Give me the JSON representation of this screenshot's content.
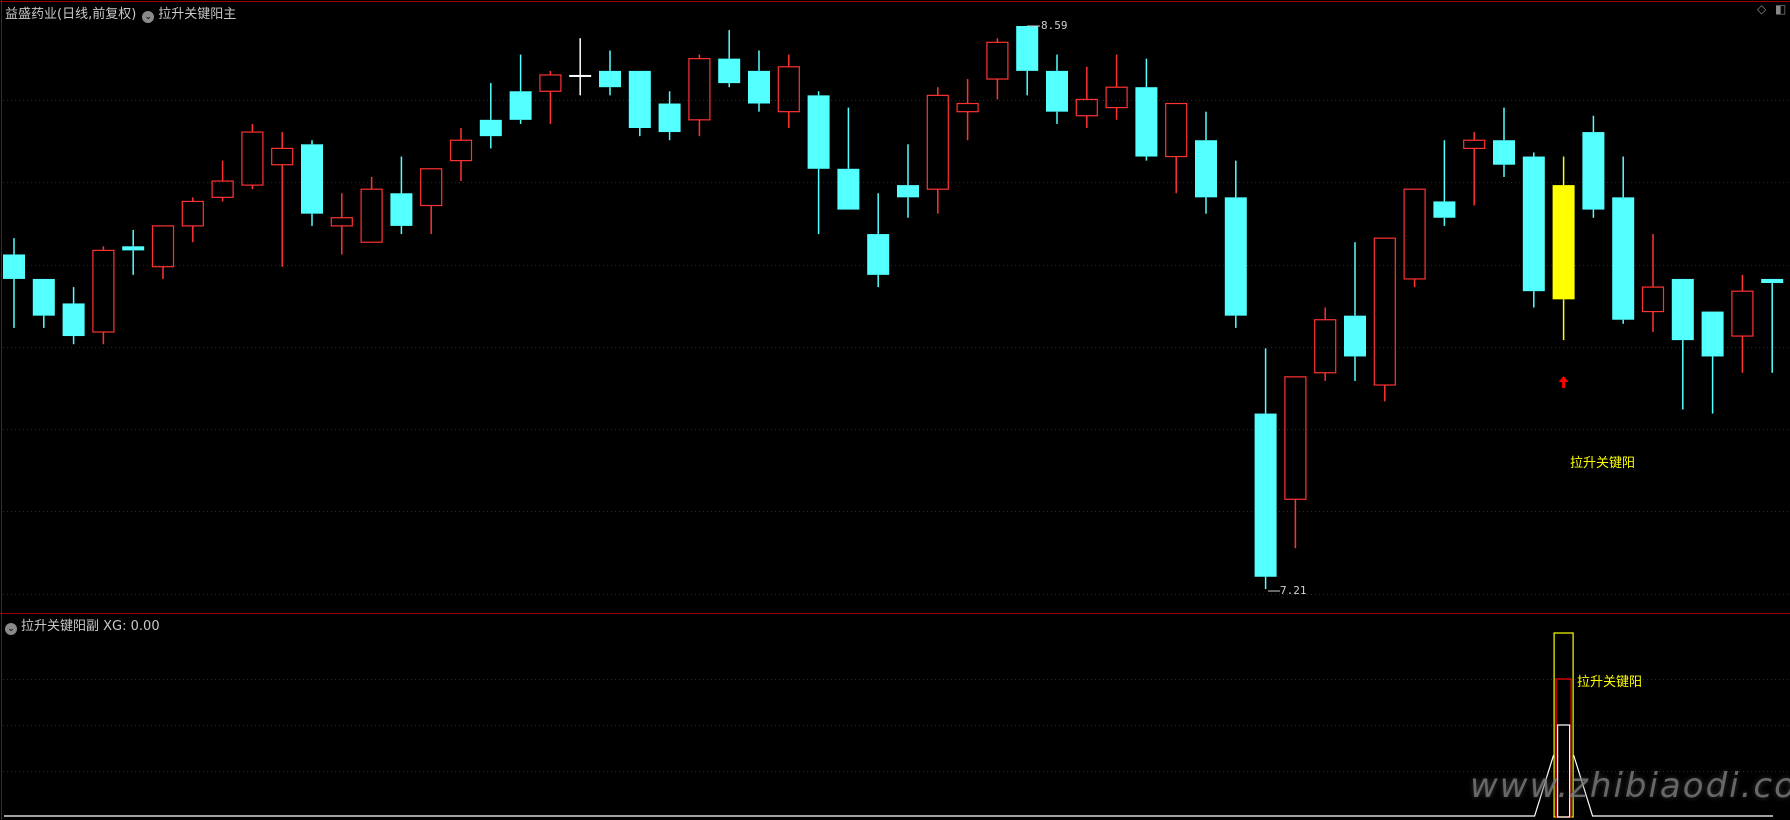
{
  "header": {
    "stock_title": "益盛药业(日线,前复权)",
    "main_indicator": "拉升关键阳主",
    "dropdown_icon": "chevron-down-circle-icon"
  },
  "sub_panel": {
    "indicator_name": "拉升关键阳副",
    "xg_label": "XG: 0.00",
    "signal_text": "拉升关键阳"
  },
  "main_signal_text": "拉升关键阳",
  "watermark": "www.zhibiaodi.com",
  "colors": {
    "up": "#ff3232",
    "down": "#54ffff",
    "signal": "#ffff00",
    "grid": "#8b0000",
    "border": "#a00000",
    "text": "#c8c8c8"
  },
  "top_right_icons": [
    "diamond-icon",
    "panel-toggle-icon"
  ],
  "chart_data": {
    "type": "candlestick",
    "high_label": "8.59",
    "low_label": "7.21",
    "ylim": [
      7.21,
      8.59
    ],
    "grid": true,
    "signal_index": 52,
    "ohlc": [
      [
        8.03,
        8.07,
        7.85,
        7.97
      ],
      [
        7.97,
        7.97,
        7.85,
        7.88
      ],
      [
        7.91,
        7.95,
        7.81,
        7.83
      ],
      [
        7.84,
        8.05,
        7.81,
        8.04
      ],
      [
        8.05,
        8.09,
        7.98,
        8.04
      ],
      [
        8.0,
        8.1,
        7.97,
        8.1
      ],
      [
        8.1,
        8.17,
        8.06,
        8.16
      ],
      [
        8.17,
        8.26,
        8.16,
        8.21
      ],
      [
        8.2,
        8.35,
        8.19,
        8.33
      ],
      [
        8.25,
        8.33,
        8.0,
        8.29
      ],
      [
        8.3,
        8.31,
        8.1,
        8.13
      ],
      [
        8.1,
        8.18,
        8.03,
        8.12
      ],
      [
        8.06,
        8.22,
        8.06,
        8.19
      ],
      [
        8.18,
        8.27,
        8.08,
        8.1
      ],
      [
        8.15,
        8.24,
        8.08,
        8.24
      ],
      [
        8.26,
        8.34,
        8.21,
        8.31
      ],
      [
        8.36,
        8.45,
        8.29,
        8.32
      ],
      [
        8.43,
        8.52,
        8.35,
        8.36
      ],
      [
        8.43,
        8.48,
        8.35,
        8.47
      ],
      [
        8.47,
        8.56,
        8.42,
        8.47
      ],
      [
        8.48,
        8.53,
        8.42,
        8.44
      ],
      [
        8.48,
        8.48,
        8.32,
        8.34
      ],
      [
        8.4,
        8.43,
        8.31,
        8.33
      ],
      [
        8.36,
        8.52,
        8.32,
        8.51
      ],
      [
        8.51,
        8.58,
        8.44,
        8.45
      ],
      [
        8.48,
        8.53,
        8.38,
        8.4
      ],
      [
        8.38,
        8.52,
        8.34,
        8.49
      ],
      [
        8.42,
        8.43,
        8.08,
        8.24
      ],
      [
        8.24,
        8.39,
        8.14,
        8.14
      ],
      [
        8.08,
        8.18,
        7.95,
        7.98
      ],
      [
        8.2,
        8.3,
        8.12,
        8.17
      ],
      [
        8.19,
        8.44,
        8.13,
        8.42
      ],
      [
        8.38,
        8.46,
        8.31,
        8.4
      ],
      [
        8.46,
        8.56,
        8.41,
        8.55
      ],
      [
        8.59,
        8.59,
        8.42,
        8.48
      ],
      [
        8.48,
        8.52,
        8.35,
        8.38
      ],
      [
        8.37,
        8.49,
        8.34,
        8.41
      ],
      [
        8.39,
        8.52,
        8.36,
        8.44
      ],
      [
        8.44,
        8.51,
        8.26,
        8.27
      ],
      [
        8.27,
        8.4,
        8.18,
        8.4
      ],
      [
        8.31,
        8.38,
        8.13,
        8.17
      ],
      [
        8.17,
        8.26,
        7.85,
        7.88
      ],
      [
        7.64,
        7.8,
        7.21,
        7.24
      ],
      [
        7.43,
        7.73,
        7.31,
        7.73
      ],
      [
        7.74,
        7.9,
        7.72,
        7.87
      ],
      [
        7.88,
        8.06,
        7.72,
        7.78
      ],
      [
        7.71,
        8.07,
        7.67,
        8.07
      ],
      [
        7.97,
        8.19,
        7.95,
        8.19
      ],
      [
        8.16,
        8.31,
        8.1,
        8.12
      ],
      [
        8.29,
        8.33,
        8.15,
        8.31
      ],
      [
        8.31,
        8.39,
        8.22,
        8.25
      ],
      [
        8.27,
        8.28,
        7.9,
        7.94
      ],
      [
        7.92,
        8.27,
        7.82,
        8.2
      ],
      [
        8.33,
        8.37,
        8.12,
        8.14
      ],
      [
        8.17,
        8.27,
        7.86,
        7.87
      ],
      [
        7.89,
        8.08,
        7.84,
        7.95
      ],
      [
        7.97,
        7.97,
        7.65,
        7.82
      ],
      [
        7.89,
        7.89,
        7.64,
        7.78
      ],
      [
        7.83,
        7.98,
        7.74,
        7.94
      ],
      [
        7.97,
        7.97,
        7.74,
        7.96
      ]
    ]
  }
}
